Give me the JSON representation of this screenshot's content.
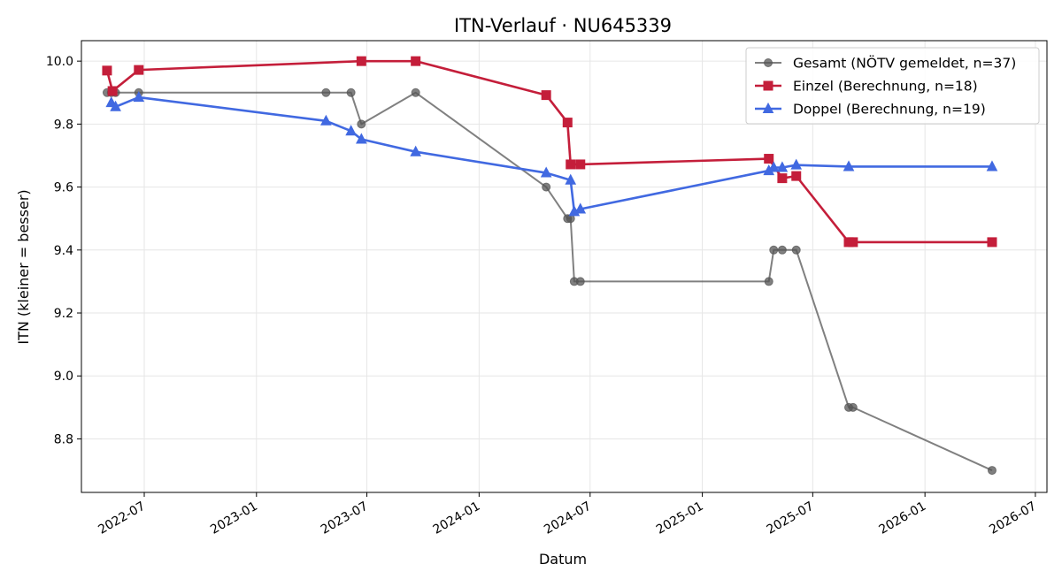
{
  "chart_data": {
    "type": "line",
    "title": "ITN-Verlauf · NU645339",
    "xlabel": "Datum",
    "ylabel": "ITN  (kleiner = besser)",
    "xlim": [
      "2022-03-20",
      "2026-07-20"
    ],
    "ylim": [
      8.63,
      10.065
    ],
    "x_ticks": [
      "2022-07",
      "2023-01",
      "2023-07",
      "2024-01",
      "2024-07",
      "2025-01",
      "2025-07",
      "2026-01",
      "2026-07"
    ],
    "y_ticks": [
      "8.8",
      "9.0",
      "9.2",
      "9.4",
      "9.6",
      "9.8",
      "10.0"
    ],
    "grid": true,
    "legend_position": "top-right",
    "series": [
      {
        "name": "Gesamt (NÖTV gemeldet, n=37)",
        "color": "#555555",
        "marker": "circle",
        "points": [
          {
            "x": "2022-05-01",
            "y": 9.9
          },
          {
            "x": "2022-05-08",
            "y": 9.9
          },
          {
            "x": "2022-05-15",
            "y": 9.9
          },
          {
            "x": "2022-06-22",
            "y": 9.9
          },
          {
            "x": "2023-04-25",
            "y": 9.9
          },
          {
            "x": "2023-06-05",
            "y": 9.9
          },
          {
            "x": "2023-06-22",
            "y": 9.8
          },
          {
            "x": "2023-09-19",
            "y": 9.9
          },
          {
            "x": "2024-04-20",
            "y": 9.6
          },
          {
            "x": "2024-05-25",
            "y": 9.5
          },
          {
            "x": "2024-05-30",
            "y": 9.5
          },
          {
            "x": "2024-06-05",
            "y": 9.3
          },
          {
            "x": "2024-06-15",
            "y": 9.3
          },
          {
            "x": "2025-04-20",
            "y": 9.3
          },
          {
            "x": "2025-04-28",
            "y": 9.4
          },
          {
            "x": "2025-05-12",
            "y": 9.4
          },
          {
            "x": "2025-06-04",
            "y": 9.4
          },
          {
            "x": "2025-08-29",
            "y": 8.9
          },
          {
            "x": "2025-09-05",
            "y": 8.9
          },
          {
            "x": "2026-04-21",
            "y": 8.7
          }
        ]
      },
      {
        "name": "Einzel (Berechnung, n=18)",
        "color": "#c41e3a",
        "marker": "square",
        "points": [
          {
            "x": "2022-05-01",
            "y": 9.97
          },
          {
            "x": "2022-05-10",
            "y": 9.905
          },
          {
            "x": "2022-06-22",
            "y": 9.972
          },
          {
            "x": "2023-06-22",
            "y": 10.0
          },
          {
            "x": "2023-09-19",
            "y": 10.0
          },
          {
            "x": "2024-04-20",
            "y": 9.892
          },
          {
            "x": "2024-05-25",
            "y": 9.805
          },
          {
            "x": "2024-05-30",
            "y": 9.672
          },
          {
            "x": "2024-06-15",
            "y": 9.672
          },
          {
            "x": "2025-04-20",
            "y": 9.69
          },
          {
            "x": "2025-05-12",
            "y": 9.628
          },
          {
            "x": "2025-06-04",
            "y": 9.635
          },
          {
            "x": "2025-08-29",
            "y": 9.425
          },
          {
            "x": "2025-09-05",
            "y": 9.425
          },
          {
            "x": "2026-04-21",
            "y": 9.425
          }
        ]
      },
      {
        "name": "Doppel (Berechnung, n=19)",
        "color": "#4169e1",
        "marker": "triangle",
        "points": [
          {
            "x": "2022-05-08",
            "y": 9.868
          },
          {
            "x": "2022-05-15",
            "y": 9.855
          },
          {
            "x": "2022-06-22",
            "y": 9.885
          },
          {
            "x": "2023-04-25",
            "y": 9.81
          },
          {
            "x": "2023-06-05",
            "y": 9.778
          },
          {
            "x": "2023-06-22",
            "y": 9.752
          },
          {
            "x": "2023-09-19",
            "y": 9.712
          },
          {
            "x": "2024-04-20",
            "y": 9.645
          },
          {
            "x": "2024-05-30",
            "y": 9.622
          },
          {
            "x": "2024-06-05",
            "y": 9.522
          },
          {
            "x": "2024-06-15",
            "y": 9.53
          },
          {
            "x": "2025-04-20",
            "y": 9.652
          },
          {
            "x": "2025-04-28",
            "y": 9.662
          },
          {
            "x": "2025-05-12",
            "y": 9.662
          },
          {
            "x": "2025-06-04",
            "y": 9.67
          },
          {
            "x": "2025-08-29",
            "y": 9.665
          },
          {
            "x": "2026-04-21",
            "y": 9.665
          }
        ]
      }
    ]
  }
}
